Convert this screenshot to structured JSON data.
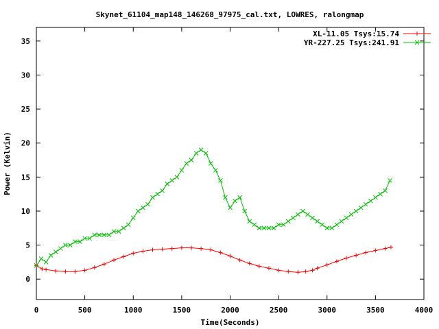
{
  "chart_data": {
    "type": "line",
    "title": "Skynet_61104_map148_146268_97975_cal.txt, LOWRES, ralongmap",
    "xlabel": "Time(Seconds)",
    "ylabel": "Power (Kelvin)",
    "xlim": [
      0,
      4000
    ],
    "ylim": [
      -3,
      37
    ],
    "xticks": [
      0,
      500,
      1000,
      1500,
      2000,
      2500,
      3000,
      3500,
      4000
    ],
    "yticks": [
      0,
      5,
      10,
      15,
      20,
      25,
      30,
      35
    ],
    "legend_position": "top-right",
    "grid": false,
    "series": [
      {
        "name": "XL-11.05 Tsys:15.74",
        "color": "#ff0000",
        "marker": "plus",
        "x": [
          0,
          60,
          100,
          200,
          300,
          400,
          500,
          600,
          700,
          800,
          900,
          1000,
          1100,
          1200,
          1300,
          1400,
          1500,
          1600,
          1700,
          1800,
          1900,
          2000,
          2100,
          2200,
          2300,
          2400,
          2500,
          2600,
          2700,
          2780,
          2850,
          2900,
          3000,
          3100,
          3200,
          3300,
          3400,
          3500,
          3600,
          3660
        ],
        "values": [
          2.0,
          1.5,
          1.4,
          1.2,
          1.1,
          1.1,
          1.3,
          1.7,
          2.2,
          2.8,
          3.3,
          3.8,
          4.1,
          4.3,
          4.4,
          4.5,
          4.6,
          4.6,
          4.5,
          4.3,
          3.9,
          3.4,
          2.8,
          2.3,
          1.9,
          1.6,
          1.3,
          1.1,
          1.0,
          1.1,
          1.3,
          1.6,
          2.1,
          2.6,
          3.1,
          3.5,
          3.9,
          4.2,
          4.5,
          4.7
        ]
      },
      {
        "name": "YR-227.25 Tsys:241.91",
        "color": "#00c000",
        "marker": "x",
        "x": [
          0,
          50,
          100,
          150,
          200,
          250,
          300,
          350,
          400,
          450,
          500,
          550,
          600,
          650,
          700,
          750,
          800,
          850,
          900,
          950,
          1000,
          1050,
          1100,
          1150,
          1200,
          1250,
          1300,
          1350,
          1400,
          1450,
          1500,
          1550,
          1600,
          1650,
          1700,
          1750,
          1800,
          1850,
          1900,
          1950,
          2000,
          2050,
          2100,
          2150,
          2200,
          2250,
          2300,
          2350,
          2400,
          2450,
          2500,
          2550,
          2600,
          2650,
          2700,
          2750,
          2800,
          2850,
          2900,
          2950,
          3000,
          3050,
          3100,
          3150,
          3200,
          3250,
          3300,
          3350,
          3400,
          3450,
          3500,
          3550,
          3600,
          3650
        ],
        "values": [
          2.0,
          3.0,
          2.5,
          3.5,
          4.0,
          4.5,
          5.0,
          5.0,
          5.5,
          5.5,
          6.0,
          6.0,
          6.5,
          6.5,
          6.5,
          6.5,
          7.0,
          7.0,
          7.5,
          8.0,
          9.0,
          10.0,
          10.5,
          11.0,
          12.0,
          12.5,
          13.0,
          14.0,
          14.5,
          15.0,
          16.0,
          17.0,
          17.5,
          18.5,
          19.0,
          18.5,
          17.0,
          16.0,
          14.5,
          12.0,
          10.5,
          11.5,
          12.0,
          10.0,
          8.5,
          8.0,
          7.5,
          7.5,
          7.5,
          7.5,
          8.0,
          8.0,
          8.5,
          9.0,
          9.5,
          10.0,
          9.5,
          9.0,
          8.5,
          8.0,
          7.5,
          7.5,
          8.0,
          8.5,
          9.0,
          9.5,
          10.0,
          10.5,
          11.0,
          11.5,
          12.0,
          12.5,
          13.0,
          14.5
        ]
      }
    ]
  }
}
